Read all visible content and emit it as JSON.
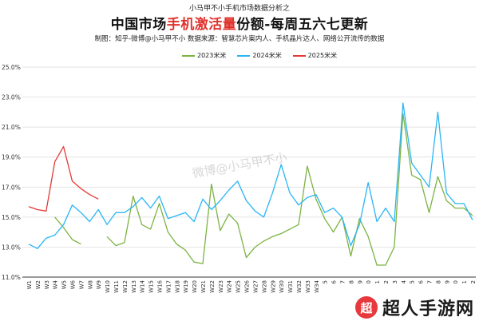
{
  "header": {
    "supertitle": "小马甲不小手机市场数据分析之",
    "title_pre": "中国市场",
    "title_highlight": "手机激活量",
    "title_post": "份额-每周五六七更新",
    "subtitle": "制图：知乎-微博@小马甲不小   数据来源：智慧芯片案内人、手机晶片达人、网络公开流传的数据"
  },
  "watermark": "微博@小马甲不小",
  "brand": {
    "logo": "超",
    "name": "超人手游网"
  },
  "colors": {
    "s2023": "#7cb342",
    "s2024": "#29b6f6",
    "s2025": "#e53935",
    "grid": "#d8d8d8",
    "axis": "#333333"
  },
  "chart_data": {
    "type": "line",
    "ylim": [
      11.0,
      25.0
    ],
    "yticks": [
      "11.0%",
      "13.0%",
      "15.0%",
      "17.0%",
      "19.0%",
      "21.0%",
      "23.0%",
      "25.0%"
    ],
    "x": [
      "W1",
      "W2",
      "W3",
      "W4",
      "W5",
      "W6",
      "W7",
      "W8",
      "W9",
      "W10",
      "W11",
      "W12",
      "W13",
      "W14",
      "W15",
      "W16",
      "W17",
      "W18",
      "W19",
      "W20",
      "W21",
      "W22",
      "W23",
      "W24",
      "W25",
      "W26",
      "W27",
      "W28",
      "W29",
      "W30",
      "W31",
      "W32",
      "W33",
      "W34",
      "W35",
      "W36",
      "W37",
      "W38",
      "W39",
      "W40",
      "W41",
      "W42",
      "W43",
      "W44",
      "W45",
      "W46",
      "W47",
      "W48",
      "W49",
      "W50",
      "W51",
      "W52"
    ],
    "xlabels_shown": [
      "W1",
      "W2",
      "W3",
      "W4",
      "W5",
      "W6",
      "W7",
      "W8",
      "W9",
      "W10",
      "W11",
      "W12",
      "W13",
      "W14",
      "W15",
      "W16",
      "W17",
      "W18",
      "W19",
      "W20",
      "W21",
      "W22",
      "W23",
      "W24",
      "W25",
      "W26",
      "W27",
      "W28",
      "W29",
      "W30",
      "W31",
      "W32",
      "W33",
      "W34",
      "5",
      "6",
      "7",
      "8",
      "9",
      "0",
      "1",
      "2",
      "3",
      "4",
      "5",
      "6",
      "7",
      "8",
      "9",
      "0",
      "1",
      "2"
    ],
    "grid": "horizontal",
    "legend_placement": "top-center",
    "series": [
      {
        "name": "2023米米",
        "key": "s2023",
        "values": [
          null,
          null,
          null,
          15.0,
          14.3,
          13.5,
          13.2,
          null,
          null,
          13.7,
          13.1,
          13.3,
          16.4,
          14.5,
          14.2,
          15.9,
          14.0,
          13.2,
          12.8,
          12.0,
          11.9,
          17.2,
          14.1,
          15.2,
          14.6,
          12.3,
          13.0,
          13.4,
          13.7,
          13.9,
          14.2,
          14.5,
          18.4,
          16.2,
          14.9,
          14.0,
          15.0,
          12.4,
          14.9,
          13.7,
          11.8,
          11.8,
          13.0,
          21.9,
          17.8,
          17.5,
          15.3,
          17.7,
          16.1,
          15.6,
          15.6,
          15.1
        ]
      },
      {
        "name": "2024米米",
        "key": "s2024",
        "values": [
          13.2,
          12.9,
          13.6,
          13.8,
          14.5,
          15.8,
          15.3,
          14.7,
          15.5,
          14.5,
          15.3,
          15.3,
          15.7,
          16.3,
          15.6,
          16.4,
          14.9,
          15.1,
          15.3,
          14.7,
          16.2,
          15.5,
          16.1,
          16.8,
          17.4,
          16.1,
          15.4,
          15.0,
          16.6,
          18.5,
          16.6,
          15.8,
          16.3,
          16.5,
          15.3,
          15.6,
          15.0,
          13.1,
          14.5,
          17.3,
          14.7,
          15.6,
          14.7,
          22.6,
          18.6,
          17.8,
          17.0,
          22.0,
          16.6,
          15.9,
          15.9,
          14.8
        ]
      },
      {
        "name": "2025米米",
        "key": "s2025",
        "values": [
          15.7,
          15.5,
          15.4,
          18.7,
          19.7,
          17.4,
          16.9,
          16.5,
          16.2,
          null,
          null,
          null,
          null,
          null,
          null,
          null,
          null,
          null,
          null,
          null,
          null,
          null,
          null,
          null,
          null,
          null,
          null,
          null,
          null,
          null,
          null,
          null,
          null,
          null,
          null,
          null,
          null,
          null,
          null,
          null,
          null,
          null,
          null,
          null,
          null,
          null,
          null,
          null,
          null,
          null,
          null,
          null
        ]
      }
    ]
  }
}
